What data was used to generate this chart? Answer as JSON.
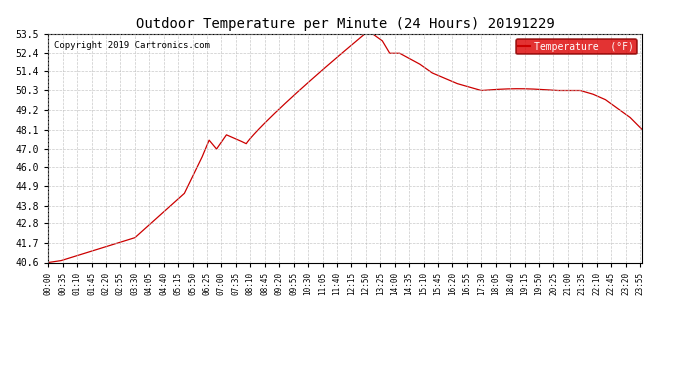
{
  "title": "Outdoor Temperature per Minute (24 Hours) 20191229",
  "copyright": "Copyright 2019 Cartronics.com",
  "legend_label": "Temperature  (°F)",
  "line_color": "#cc0000",
  "bg_color": "#ffffff",
  "plot_bg_color": "#ffffff",
  "grid_color": "#bbbbbb",
  "legend_bg": "#dd0000",
  "legend_text_color": "#ffffff",
  "ylim": [
    40.6,
    53.5
  ],
  "yticks": [
    40.6,
    41.7,
    42.8,
    43.8,
    44.9,
    46.0,
    47.0,
    48.1,
    49.2,
    50.3,
    51.4,
    52.4,
    53.5
  ],
  "xtick_labels": [
    "00:00",
    "00:35",
    "01:10",
    "01:45",
    "02:20",
    "02:55",
    "03:30",
    "04:05",
    "04:40",
    "05:15",
    "05:50",
    "06:25",
    "07:00",
    "07:35",
    "08:10",
    "08:45",
    "09:20",
    "09:55",
    "10:30",
    "11:05",
    "11:40",
    "12:15",
    "12:50",
    "13:25",
    "14:00",
    "14:35",
    "15:10",
    "15:45",
    "16:20",
    "16:55",
    "17:30",
    "18:05",
    "18:40",
    "19:15",
    "19:50",
    "20:25",
    "21:00",
    "21:35",
    "22:10",
    "22:45",
    "23:20",
    "23:55"
  ],
  "n_points": 1440
}
